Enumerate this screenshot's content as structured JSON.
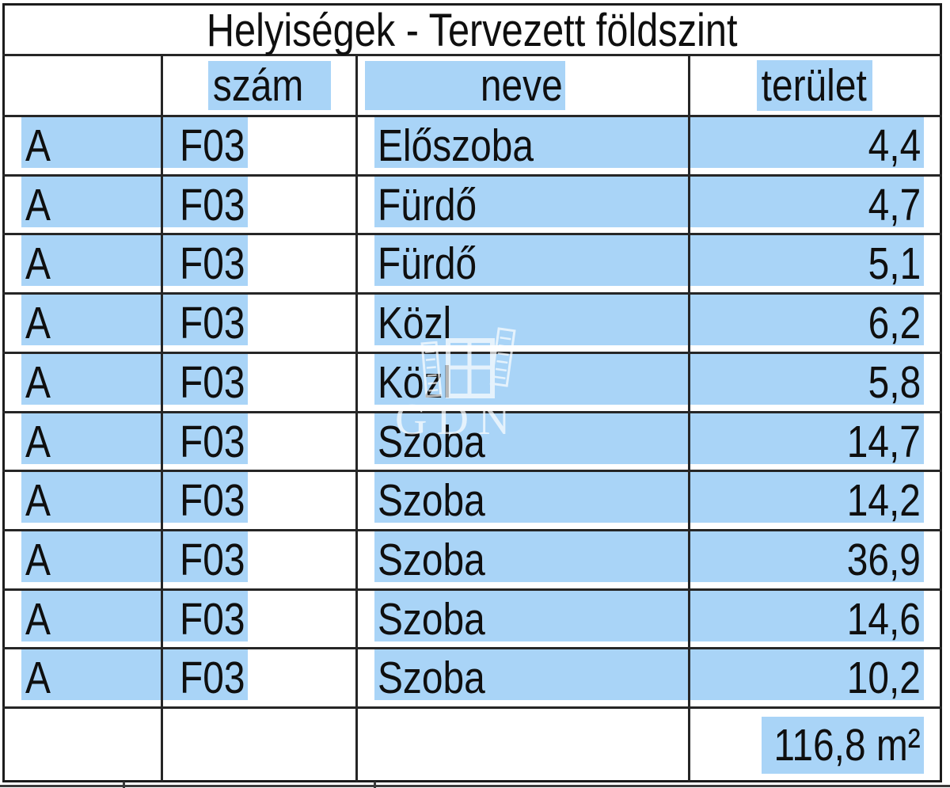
{
  "title": "Helyiségek - Tervezett földszint",
  "header": {
    "szam": "szám",
    "neve": "neve",
    "terulet": "terület"
  },
  "rows": [
    {
      "block": "A",
      "szam": "F03",
      "neve": "Előszoba",
      "terulet": "4,4"
    },
    {
      "block": "A",
      "szam": "F03",
      "neve": "Fürdő",
      "terulet": "4,7"
    },
    {
      "block": "A",
      "szam": "F03",
      "neve": "Fürdő",
      "terulet": "5,1"
    },
    {
      "block": "A",
      "szam": "F03",
      "neve": "Közl",
      "terulet": "6,2"
    },
    {
      "block": "A",
      "szam": "F03",
      "neve": "Közl",
      "terulet": "5,8"
    },
    {
      "block": "A",
      "szam": "F03",
      "neve": "Szoba",
      "terulet": "14,7"
    },
    {
      "block": "A",
      "szam": "F03",
      "neve": "Szoba",
      "terulet": "14,2"
    },
    {
      "block": "A",
      "szam": "F03",
      "neve": "Szoba",
      "terulet": "36,9"
    },
    {
      "block": "A",
      "szam": "F03",
      "neve": "Szoba",
      "terulet": "14,6"
    },
    {
      "block": "A",
      "szam": "F03",
      "neve": "Szoba",
      "terulet": "10,2"
    }
  ],
  "total": "116,8 m²",
  "watermark": {
    "text": "GDN"
  },
  "colors": {
    "highlight": "#a9d4f7",
    "grid": "#262626",
    "text": "#0f0f0f"
  }
}
